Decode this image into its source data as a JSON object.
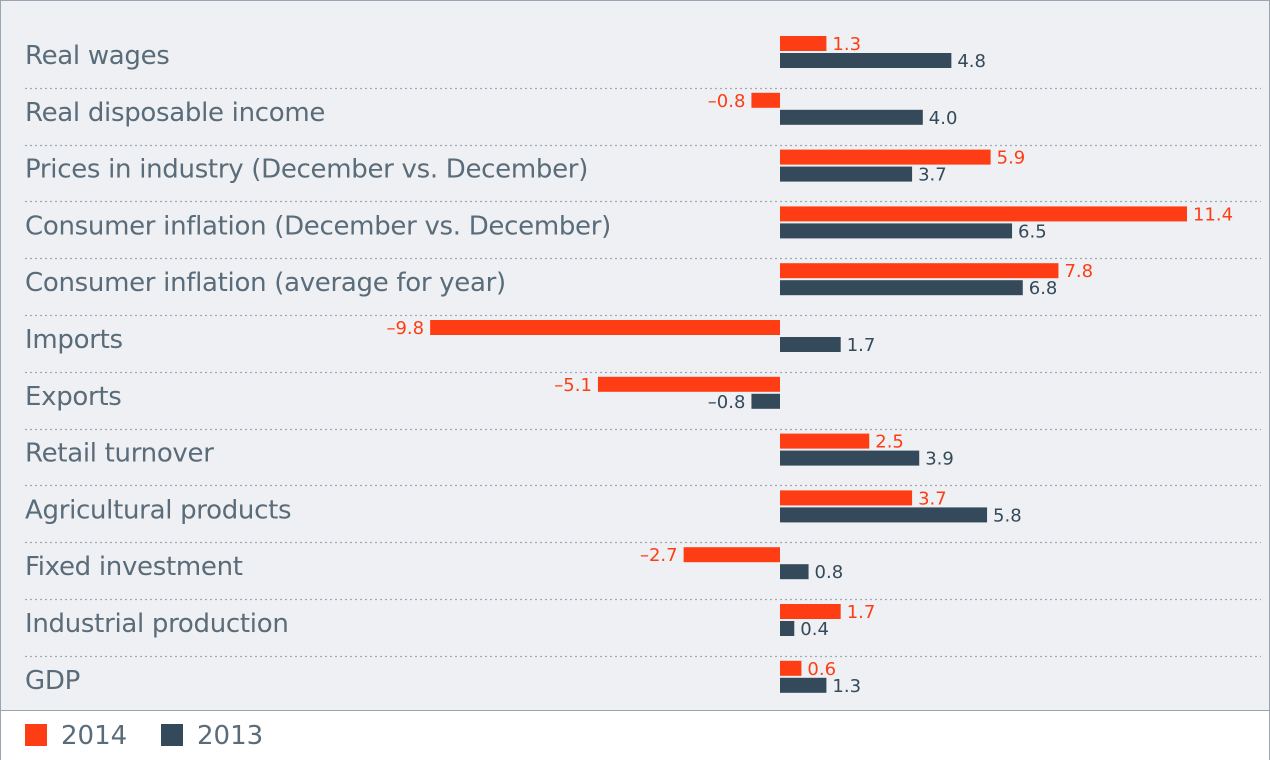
{
  "chart_data": {
    "type": "bar",
    "orientation": "horizontal",
    "categories": [
      "Real wages",
      "Real disposable income",
      "Prices in industry (December vs. December)",
      "Consumer inflation (December vs. December)",
      "Consumer inflation (average for year)",
      "Imports",
      "Exports",
      "Retail turnover",
      "Agricultural products",
      "Fixed investment",
      "Industrial production",
      "GDP"
    ],
    "series": [
      {
        "name": "2014",
        "color": "#ff3d14",
        "values": [
          1.3,
          -0.8,
          5.9,
          11.4,
          7.8,
          -9.8,
          -5.1,
          2.5,
          3.7,
          -2.7,
          1.7,
          0.6
        ],
        "labels": [
          "1.3",
          "–0.8",
          "5.9",
          "11.4",
          "7.8",
          "–9.8",
          "–5.1",
          "2.5",
          "3.7",
          "–2.7",
          "1.7",
          "0.6"
        ]
      },
      {
        "name": "2013",
        "color": "#34495a",
        "values": [
          4.8,
          4.0,
          3.7,
          6.5,
          6.8,
          1.7,
          -0.8,
          3.9,
          5.8,
          0.8,
          0.4,
          1.3
        ],
        "labels": [
          "4.8",
          "4.0",
          "3.7",
          "6.5",
          "6.8",
          "1.7",
          "–0.8",
          "3.9",
          "5.8",
          "0.8",
          "0.4",
          "1.3"
        ]
      }
    ],
    "title": "",
    "xlabel": "",
    "ylabel": "",
    "grid": false,
    "legend_position": "bottom-left"
  },
  "legend": {
    "items": [
      {
        "label": "2014",
        "color": "#ff3d14"
      },
      {
        "label": "2013",
        "color": "#34495a"
      }
    ]
  }
}
